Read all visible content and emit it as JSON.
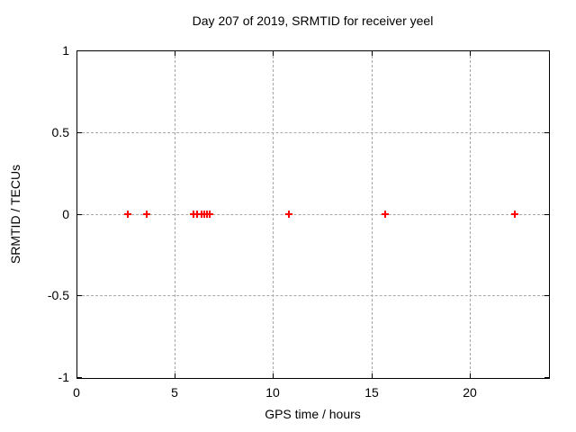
{
  "chart_data": {
    "type": "scatter",
    "title": "Day 207 of 2019, SRMTID for receiver yeel",
    "xlabel": "GPS time / hours",
    "ylabel": "SRMTID / TECUs",
    "xlim": [
      0,
      24
    ],
    "ylim": [
      -1,
      1
    ],
    "xticks": {
      "values": [
        0,
        5,
        10,
        15,
        20
      ],
      "labels": [
        "0",
        "5",
        "10",
        "15",
        "20"
      ]
    },
    "yticks": {
      "values": [
        1,
        0.5,
        0,
        -0.5,
        -1
      ],
      "labels": [
        "1",
        "0.5",
        "0",
        "-0.5",
        "-1"
      ]
    },
    "grid": true,
    "legend": false,
    "marker_style": "plus",
    "colors": {
      "marker": "#ff0000",
      "grid": "#a9a9a9",
      "axis": "#000000",
      "background": "#ffffff"
    },
    "series": [
      {
        "x": [
          2.6,
          3.55,
          5.95,
          6.15,
          6.35,
          6.5,
          6.65,
          6.8,
          10.8,
          15.7,
          22.3
        ],
        "y": [
          0,
          0,
          0,
          0,
          0,
          0,
          0,
          0,
          0,
          0,
          0
        ]
      }
    ]
  }
}
